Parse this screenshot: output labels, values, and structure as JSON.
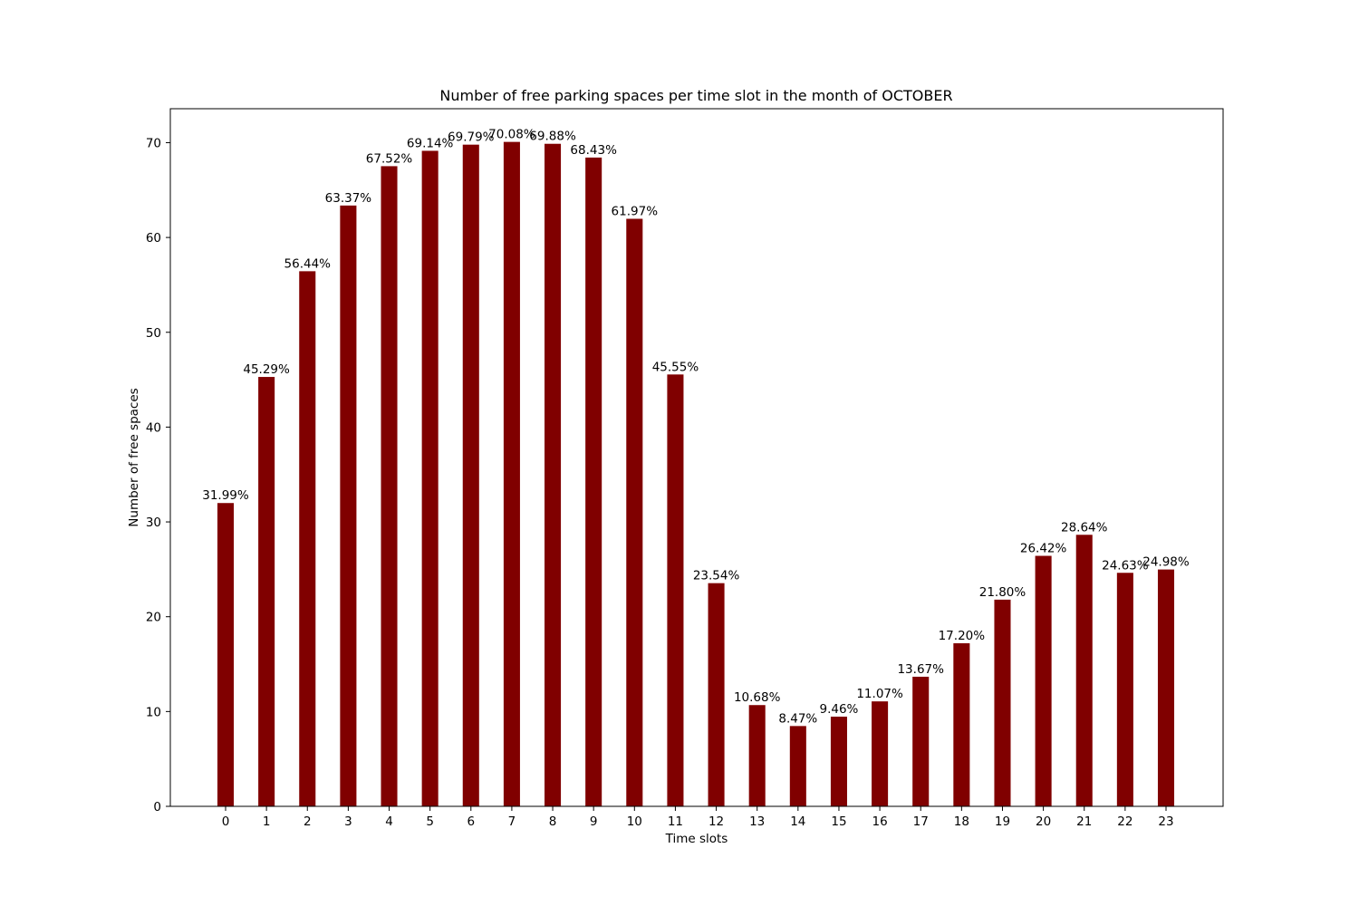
{
  "chart_data": {
    "type": "bar",
    "title": "Number of free parking spaces per time slot in the month of OCTOBER",
    "xlabel": "Time slots",
    "ylabel": "Number of free spaces",
    "categories": [
      "0",
      "1",
      "2",
      "3",
      "4",
      "5",
      "6",
      "7",
      "8",
      "9",
      "10",
      "11",
      "12",
      "13",
      "14",
      "15",
      "16",
      "17",
      "18",
      "19",
      "20",
      "21",
      "22",
      "23"
    ],
    "values": [
      31.99,
      45.29,
      56.44,
      63.37,
      67.52,
      69.14,
      69.79,
      70.08,
      69.88,
      68.43,
      61.97,
      45.55,
      23.54,
      10.68,
      8.47,
      9.46,
      11.07,
      13.67,
      17.2,
      21.8,
      26.42,
      28.64,
      24.63,
      24.98
    ],
    "data_labels": [
      "31.99%",
      "45.29%",
      "56.44%",
      "63.37%",
      "67.52%",
      "69.14%",
      "69.79%",
      "70.08%",
      "69.88%",
      "68.43%",
      "61.97%",
      "45.55%",
      "23.54%",
      "10.68%",
      "8.47%",
      "9.46%",
      "11.07%",
      "13.67%",
      "17.20%",
      "21.80%",
      "26.42%",
      "28.64%",
      "24.63%",
      "24.98%"
    ],
    "yticks": [
      0,
      10,
      20,
      30,
      40,
      50,
      60,
      70
    ],
    "ylim": [
      0,
      73.58
    ],
    "bar_color": "#800000",
    "grid": false,
    "legend": "none"
  }
}
